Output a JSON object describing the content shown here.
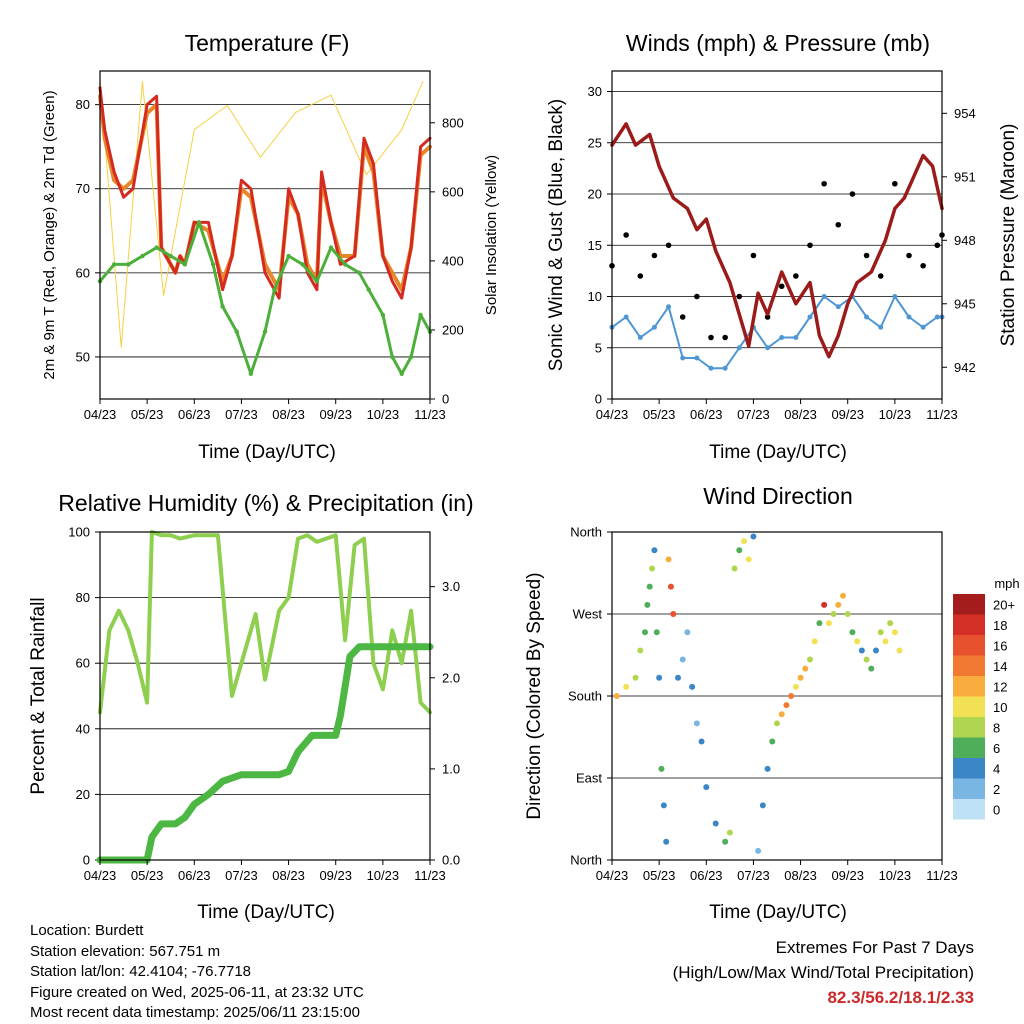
{
  "panels": {
    "temperature": {
      "title": "Temperature (F)",
      "ylabel": "2m & 9m T (Red, Orange) & 2m Td (Green)",
      "y2label": "Solar Insolation (Yellow)",
      "xlabel": "Time (Day/UTC)"
    },
    "winds": {
      "title": "Winds (mph) & Pressure (mb)",
      "ylabel": "Sonic Wind & Gust (Blue, Black)",
      "y2label": "Station Pressure (Maroon)",
      "xlabel": "Time (Day/UTC)"
    },
    "humidity": {
      "title": "Relative Humidity (%) & Precipitation (in)",
      "ylabel": "Percent & Total Rainfall",
      "xlabel": "Time (Day/UTC)"
    },
    "direction": {
      "title": "Wind Direction",
      "ylabel": "Direction (Colored By Speed)",
      "xlabel": "Time (Day/UTC)",
      "colorbar_title": "mph"
    }
  },
  "info": {
    "location": "Location: Burdett",
    "elevation": "Station elevation: 567.751 m",
    "latlon": "Station lat/lon: 42.4104; -76.7718",
    "created": "Figure created on Wed, 2025-06-11, at 23:32 UTC",
    "latest": "Most recent data timestamp: 2025/06/11 23:15:00"
  },
  "extremes": {
    "line1": "Extremes For Past 7 Days",
    "line2": "(High/Low/Max Wind/Total Precipitation)",
    "values": "82.3/56.2/18.1/2.33"
  },
  "chart_data": [
    {
      "id": "temperature",
      "type": "line",
      "x_ticks": [
        "04/23",
        "05/23",
        "06/23",
        "07/23",
        "08/23",
        "09/23",
        "10/23",
        "11/23"
      ],
      "ylim": [
        45,
        84
      ],
      "y_ticks": [
        50,
        60,
        70,
        80
      ],
      "y2lim": [
        0,
        950
      ],
      "y2_ticks": [
        0,
        200,
        400,
        600,
        800
      ],
      "grid": true,
      "series": [
        {
          "color": "#d42a20",
          "axis": "left",
          "x": [
            0,
            0.1,
            0.3,
            0.5,
            0.7,
            1.0,
            1.2,
            1.3,
            1.4,
            1.5,
            1.6,
            1.7,
            1.8,
            2.0,
            2.3,
            2.6,
            2.8,
            3.0,
            3.2,
            3.5,
            3.8,
            4.0,
            4.2,
            4.4,
            4.6,
            4.7,
            4.9,
            5.1,
            5.4,
            5.6,
            5.8,
            6.0,
            6.2,
            6.4,
            6.6,
            6.8,
            7.0
          ],
          "y": [
            82,
            77,
            72,
            69,
            70,
            80,
            81,
            63,
            62,
            61,
            60,
            62,
            61,
            66,
            66,
            58,
            62,
            71,
            70,
            60,
            57,
            70,
            67,
            60,
            58,
            72,
            66,
            61,
            62,
            76,
            73,
            62,
            59,
            57,
            63,
            75,
            76
          ]
        },
        {
          "color": "#e8862a",
          "axis": "left",
          "x": [
            0,
            0.1,
            0.3,
            0.5,
            0.7,
            1.0,
            1.2,
            1.3,
            1.4,
            1.5,
            1.6,
            1.7,
            1.8,
            2.0,
            2.3,
            2.6,
            2.8,
            3.0,
            3.2,
            3.5,
            3.8,
            4.0,
            4.2,
            4.4,
            4.6,
            4.7,
            4.9,
            5.1,
            5.4,
            5.6,
            5.8,
            6.0,
            6.2,
            6.4,
            6.6,
            6.8,
            7.0
          ],
          "y": [
            81,
            76,
            71,
            70,
            71,
            79,
            80,
            63,
            62,
            61,
            60,
            62,
            61,
            66,
            65,
            59,
            62,
            70,
            69,
            61,
            58,
            69,
            67,
            61,
            59,
            71,
            66,
            62,
            62,
            75,
            72,
            62,
            60,
            58,
            63,
            74,
            75
          ]
        },
        {
          "color": "#4caf3a",
          "axis": "left",
          "x": [
            0,
            0.3,
            0.6,
            0.9,
            1.2,
            1.5,
            1.8,
            2.1,
            2.4,
            2.6,
            2.9,
            3.2,
            3.5,
            3.7,
            4.0,
            4.3,
            4.6,
            4.9,
            5.2,
            5.5,
            5.7,
            6.0,
            6.2,
            6.4,
            6.6,
            6.8,
            7.0
          ],
          "y": [
            59,
            61,
            61,
            62,
            63,
            62,
            61,
            66,
            61,
            56,
            53,
            48,
            53,
            58,
            62,
            61,
            59,
            63,
            61,
            60,
            58,
            55,
            50,
            48,
            50,
            55,
            53
          ]
        },
        {
          "color": "#f5d142",
          "axis": "right",
          "x": [
            0,
            0.45,
            0.9,
            1.35,
            2.0,
            2.7,
            3.4,
            4.15,
            4.9,
            5.65,
            6.4,
            6.85
          ],
          "y": [
            930,
            150,
            920,
            300,
            780,
            850,
            700,
            830,
            880,
            650,
            780,
            920
          ]
        }
      ]
    },
    {
      "id": "winds",
      "type": "scatter",
      "x_ticks": [
        "04/23",
        "05/23",
        "06/23",
        "07/23",
        "08/23",
        "09/23",
        "10/23",
        "11/23"
      ],
      "ylim": [
        0,
        32
      ],
      "y_ticks": [
        0,
        5,
        10,
        15,
        20,
        25,
        30
      ],
      "y2lim": [
        940.5,
        956
      ],
      "y2_ticks": [
        942,
        945,
        948,
        951,
        954
      ],
      "grid": true,
      "series": [
        {
          "color": "#000000",
          "axis": "left",
          "x": [
            0,
            0.3,
            0.6,
            0.9,
            1.2,
            1.5,
            1.8,
            2.1,
            2.4,
            2.7,
            3.0,
            3.3,
            3.6,
            3.9,
            4.2,
            4.5,
            4.8,
            5.1,
            5.4,
            5.7,
            6.0,
            6.3,
            6.6,
            6.9,
            7.0
          ],
          "y": [
            13,
            16,
            12,
            14,
            15,
            8,
            10,
            6,
            6,
            10,
            14,
            8,
            11,
            12,
            15,
            21,
            17,
            20,
            14,
            12,
            21,
            14,
            13,
            15,
            16
          ]
        },
        {
          "color": "#4f96d4",
          "axis": "left",
          "x": [
            0,
            0.3,
            0.6,
            0.9,
            1.2,
            1.5,
            1.8,
            2.1,
            2.4,
            2.7,
            3.0,
            3.3,
            3.6,
            3.9,
            4.2,
            4.5,
            4.8,
            5.1,
            5.4,
            5.7,
            6.0,
            6.3,
            6.6,
            6.9,
            7.0
          ],
          "y": [
            7,
            8,
            6,
            7,
            9,
            4,
            4,
            3,
            3,
            5,
            7,
            5,
            6,
            6,
            8,
            10,
            9,
            10,
            8,
            7,
            10,
            8,
            7,
            8,
            8
          ]
        },
        {
          "color": "#9b1b1b",
          "axis": "right",
          "x": [
            0,
            0.3,
            0.5,
            0.8,
            1.0,
            1.3,
            1.6,
            1.8,
            2.0,
            2.2,
            2.5,
            2.7,
            2.9,
            3.1,
            3.3,
            3.6,
            3.9,
            4.2,
            4.4,
            4.6,
            4.8,
            5.0,
            5.2,
            5.5,
            5.8,
            6.0,
            6.2,
            6.4,
            6.6,
            6.8,
            7.0
          ],
          "y": [
            952.5,
            953.5,
            952.5,
            953,
            951.5,
            950,
            949.5,
            948.5,
            949,
            947.5,
            946,
            944.5,
            943,
            945.5,
            944.5,
            946.5,
            945,
            946,
            943.5,
            942.5,
            943.5,
            945,
            946,
            946.5,
            948,
            949.5,
            950,
            951,
            952,
            951.5,
            949.5
          ]
        }
      ]
    },
    {
      "id": "humidity",
      "type": "line",
      "x_ticks": [
        "04/23",
        "05/23",
        "06/23",
        "07/23",
        "08/23",
        "09/23",
        "10/23",
        "11/23"
      ],
      "ylim": [
        0,
        100
      ],
      "y_ticks": [
        0,
        20,
        40,
        60,
        80,
        100
      ],
      "y2lim": [
        0,
        3.6
      ],
      "y2_ticks": [
        "0.0",
        "1.0",
        "2.0",
        "3.0"
      ],
      "grid": true,
      "series": [
        {
          "color": "#8ecf4f",
          "axis": "left",
          "x": [
            0,
            0.2,
            0.4,
            0.6,
            0.8,
            1.0,
            1.1,
            1.3,
            1.5,
            1.7,
            2.0,
            2.2,
            2.5,
            2.8,
            3.0,
            3.3,
            3.5,
            3.8,
            4.0,
            4.2,
            4.4,
            4.6,
            4.8,
            5.0,
            5.2,
            5.4,
            5.6,
            5.8,
            6.0,
            6.2,
            6.4,
            6.6,
            6.8,
            7.0
          ],
          "y": [
            45,
            70,
            76,
            70,
            60,
            48,
            100,
            99,
            99,
            98,
            99,
            99,
            99,
            50,
            60,
            75,
            55,
            76,
            80,
            98,
            99,
            97,
            98,
            99,
            67,
            96,
            98,
            60,
            52,
            70,
            60,
            76,
            48,
            45
          ]
        },
        {
          "color": "#4cb843",
          "axis": "left",
          "x": [
            0,
            0.5,
            1.0,
            1.1,
            1.3,
            1.6,
            1.8,
            2.0,
            2.3,
            2.6,
            3.0,
            3.4,
            3.8,
            4.0,
            4.2,
            4.5,
            4.7,
            5.0,
            5.1,
            5.3,
            5.5,
            6.0,
            6.5,
            7.0
          ],
          "y": [
            0,
            0,
            0,
            7,
            11,
            11,
            13,
            17,
            20,
            24,
            26,
            26,
            26,
            27,
            33,
            38,
            38,
            38,
            44,
            62,
            65,
            65,
            65,
            65
          ]
        }
      ]
    },
    {
      "id": "direction",
      "type": "scatter",
      "x_ticks": [
        "04/23",
        "05/23",
        "06/23",
        "07/23",
        "08/23",
        "09/23",
        "10/23",
        "11/23"
      ],
      "y_ticks": [
        "North",
        "East",
        "South",
        "West",
        "North"
      ],
      "ylim": [
        0,
        360
      ],
      "grid": true,
      "colorbar": {
        "labels": [
          "20+",
          "18",
          "16",
          "14",
          "12",
          "10",
          "8",
          "6",
          "4",
          "2",
          "0"
        ],
        "colors": [
          "#a51c1c",
          "#d32f27",
          "#e8512d",
          "#f27a30",
          "#f9ad3e",
          "#f2e155",
          "#b0d650",
          "#4fae5a",
          "#3a86c6",
          "#79b6e4",
          "#bfe1f6"
        ]
      },
      "points": [
        {
          "x": 0.1,
          "y": 180,
          "s": 11
        },
        {
          "x": 0.3,
          "y": 190,
          "s": 10
        },
        {
          "x": 0.5,
          "y": 200,
          "s": 8
        },
        {
          "x": 0.6,
          "y": 230,
          "s": 7
        },
        {
          "x": 0.7,
          "y": 250,
          "s": 6
        },
        {
          "x": 0.75,
          "y": 280,
          "s": 5
        },
        {
          "x": 0.8,
          "y": 300,
          "s": 6
        },
        {
          "x": 0.85,
          "y": 320,
          "s": 8
        },
        {
          "x": 0.9,
          "y": 340,
          "s": 4
        },
        {
          "x": 0.95,
          "y": 250,
          "s": 5
        },
        {
          "x": 1.0,
          "y": 200,
          "s": 4
        },
        {
          "x": 1.05,
          "y": 100,
          "s": 5
        },
        {
          "x": 1.1,
          "y": 60,
          "s": 4
        },
        {
          "x": 1.15,
          "y": 20,
          "s": 3
        },
        {
          "x": 1.2,
          "y": 330,
          "s": 12
        },
        {
          "x": 1.25,
          "y": 300,
          "s": 15
        },
        {
          "x": 1.3,
          "y": 270,
          "s": 16
        },
        {
          "x": 1.4,
          "y": 200,
          "s": 3
        },
        {
          "x": 1.5,
          "y": 220,
          "s": 2
        },
        {
          "x": 1.6,
          "y": 250,
          "s": 2
        },
        {
          "x": 1.7,
          "y": 190,
          "s": 3
        },
        {
          "x": 1.8,
          "y": 150,
          "s": 2
        },
        {
          "x": 1.9,
          "y": 130,
          "s": 4
        },
        {
          "x": 2.0,
          "y": 80,
          "s": 3
        },
        {
          "x": 2.2,
          "y": 40,
          "s": 4
        },
        {
          "x": 2.4,
          "y": 20,
          "s": 5
        },
        {
          "x": 2.5,
          "y": 30,
          "s": 8
        },
        {
          "x": 2.6,
          "y": 320,
          "s": 7
        },
        {
          "x": 2.7,
          "y": 340,
          "s": 6
        },
        {
          "x": 2.8,
          "y": 350,
          "s": 9
        },
        {
          "x": 2.9,
          "y": 330,
          "s": 10
        },
        {
          "x": 3.0,
          "y": 355,
          "s": 3
        },
        {
          "x": 3.1,
          "y": 10,
          "s": 2
        },
        {
          "x": 3.2,
          "y": 60,
          "s": 3
        },
        {
          "x": 3.3,
          "y": 100,
          "s": 4
        },
        {
          "x": 3.4,
          "y": 130,
          "s": 6
        },
        {
          "x": 3.5,
          "y": 150,
          "s": 8
        },
        {
          "x": 3.6,
          "y": 160,
          "s": 12
        },
        {
          "x": 3.7,
          "y": 170,
          "s": 14
        },
        {
          "x": 3.8,
          "y": 180,
          "s": 13
        },
        {
          "x": 3.9,
          "y": 190,
          "s": 9
        },
        {
          "x": 4.0,
          "y": 200,
          "s": 11
        },
        {
          "x": 4.1,
          "y": 210,
          "s": 12
        },
        {
          "x": 4.2,
          "y": 220,
          "s": 8
        },
        {
          "x": 4.3,
          "y": 240,
          "s": 9
        },
        {
          "x": 4.4,
          "y": 260,
          "s": 6
        },
        {
          "x": 4.5,
          "y": 280,
          "s": 18
        },
        {
          "x": 4.6,
          "y": 260,
          "s": 10
        },
        {
          "x": 4.7,
          "y": 270,
          "s": 8
        },
        {
          "x": 4.8,
          "y": 280,
          "s": 12
        },
        {
          "x": 4.9,
          "y": 290,
          "s": 11
        },
        {
          "x": 5.0,
          "y": 270,
          "s": 7
        },
        {
          "x": 5.1,
          "y": 250,
          "s": 6
        },
        {
          "x": 5.2,
          "y": 240,
          "s": 9
        },
        {
          "x": 5.3,
          "y": 230,
          "s": 4
        },
        {
          "x": 5.4,
          "y": 220,
          "s": 8
        },
        {
          "x": 5.5,
          "y": 210,
          "s": 5
        },
        {
          "x": 5.6,
          "y": 230,
          "s": 4
        },
        {
          "x": 5.7,
          "y": 250,
          "s": 8
        },
        {
          "x": 5.8,
          "y": 240,
          "s": 9
        },
        {
          "x": 5.9,
          "y": 260,
          "s": 7
        },
        {
          "x": 6.0,
          "y": 250,
          "s": 10
        },
        {
          "x": 6.1,
          "y": 230,
          "s": 9
        }
      ]
    }
  ]
}
